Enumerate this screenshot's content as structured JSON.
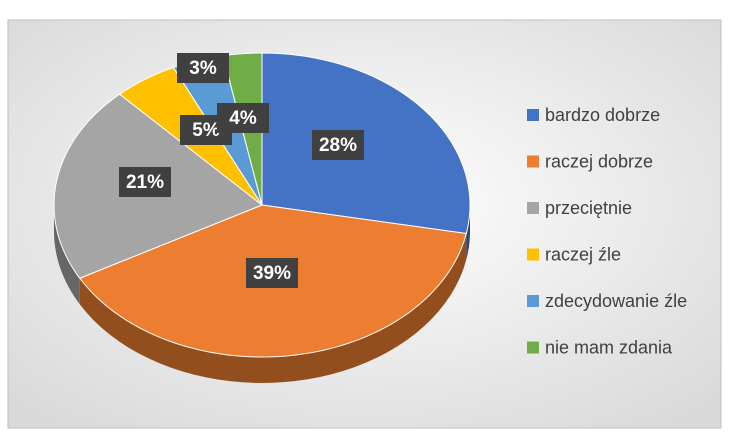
{
  "chart_data": {
    "type": "pie",
    "categories": [
      "bardzo dobrze",
      "raczej dobrze",
      "przeciętnie",
      "raczej źle",
      "zdecydowanie źle",
      "nie mam zdania"
    ],
    "values": [
      28,
      39,
      21,
      5,
      4,
      3
    ],
    "value_labels": [
      "28%",
      "39%",
      "21%",
      "5%",
      "4%",
      "3%"
    ],
    "colors": [
      "#4472c4",
      "#ed7d31",
      "#a5a5a5",
      "#ffc000",
      "#5b9bd5",
      "#70ad47"
    ],
    "legend": "right"
  }
}
